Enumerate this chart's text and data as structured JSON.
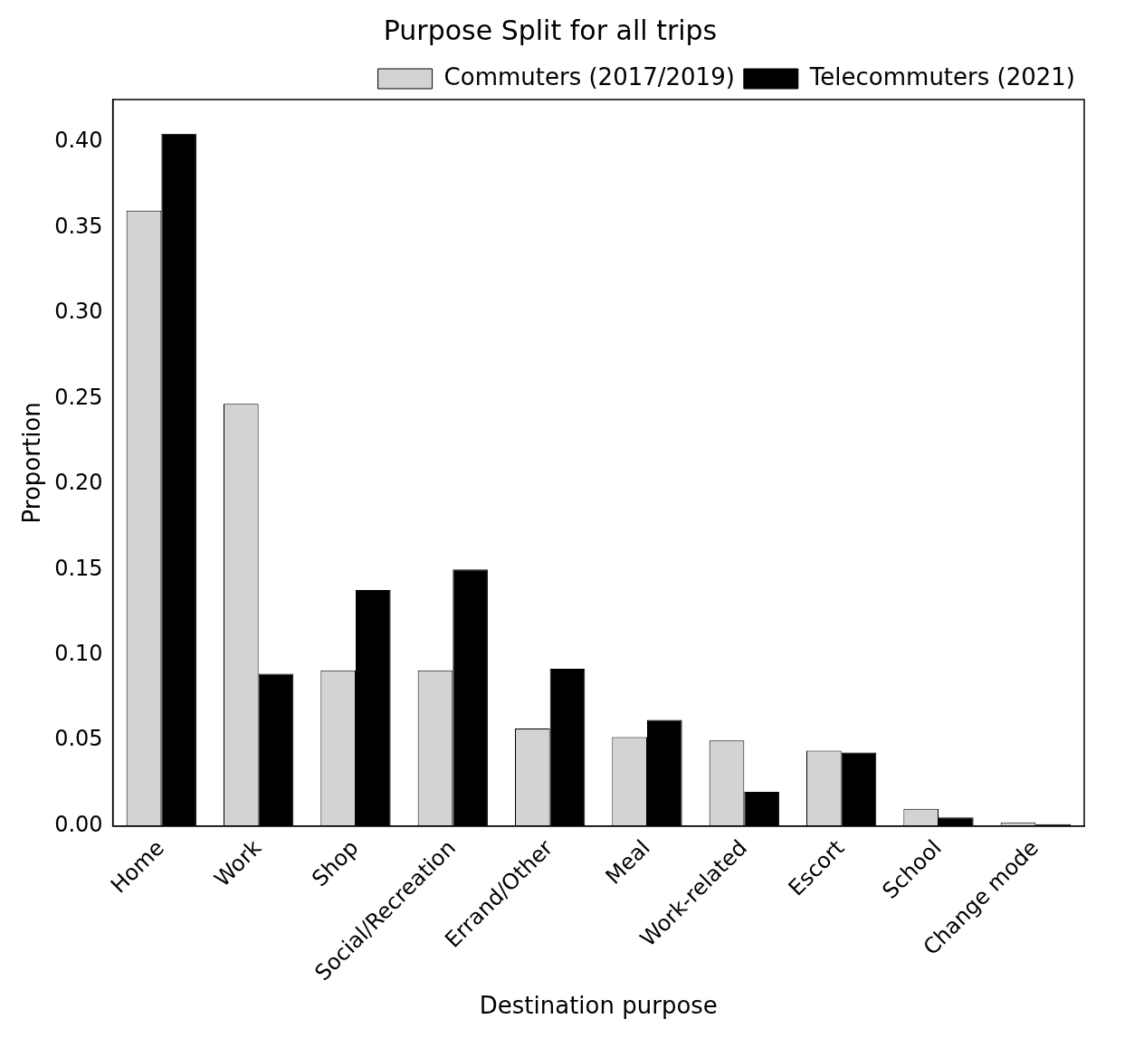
{
  "chart_data": {
    "type": "bar",
    "title": "Purpose Split for all trips",
    "xlabel": "Destination purpose",
    "ylabel": "Proportion",
    "categories": [
      "Home",
      "Work",
      "Shop",
      "Social/Recreation",
      "Errand/Other",
      "Meal",
      "Work-related",
      "Escort",
      "School",
      "Change mode"
    ],
    "series": [
      {
        "name": "Commuters (2017/2019)",
        "color": "#d3d3d3",
        "values": [
          0.36,
          0.247,
          0.091,
          0.091,
          0.057,
          0.052,
          0.05,
          0.044,
          0.01,
          0.002
        ]
      },
      {
        "name": "Telecommuters (2021)",
        "color": "#000000",
        "values": [
          0.405,
          0.089,
          0.138,
          0.15,
          0.092,
          0.062,
          0.02,
          0.043,
          0.005,
          0.001
        ]
      }
    ],
    "ylim": [
      0,
      0.425
    ],
    "yticks": [
      {
        "value": 0,
        "label": "0.00"
      },
      {
        "value": 0.05,
        "label": "0.05"
      },
      {
        "value": 0.1,
        "label": "0.10"
      },
      {
        "value": 0.15,
        "label": "0.15"
      },
      {
        "value": 0.2,
        "label": "0.20"
      },
      {
        "value": 0.25,
        "label": "0.25"
      },
      {
        "value": 0.3,
        "label": "0.30"
      },
      {
        "value": 0.35,
        "label": "0.35"
      },
      {
        "value": 0.4,
        "label": "0.40"
      }
    ],
    "grid": false,
    "legend": "top right"
  }
}
